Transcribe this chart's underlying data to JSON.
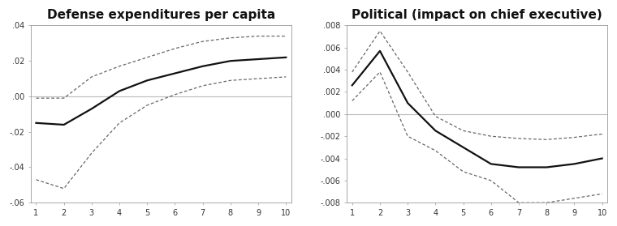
{
  "title1": "Defense expenditures per capita",
  "title2": "Political (impact on chief executive)",
  "x": [
    1,
    2,
    3,
    4,
    5,
    6,
    7,
    8,
    9,
    10
  ],
  "left_main": [
    -0.015,
    -0.016,
    -0.007,
    0.003,
    0.009,
    0.013,
    0.017,
    0.02,
    0.021,
    0.022
  ],
  "left_upper": [
    -0.001,
    -0.001,
    0.011,
    0.017,
    0.022,
    0.027,
    0.031,
    0.033,
    0.034,
    0.034
  ],
  "left_lower": [
    -0.047,
    -0.052,
    -0.032,
    -0.015,
    -0.005,
    0.001,
    0.006,
    0.009,
    0.01,
    0.011
  ],
  "right_main": [
    0.0026,
    0.0057,
    0.001,
    -0.0015,
    -0.003,
    -0.0045,
    -0.0048,
    -0.0048,
    -0.0045,
    -0.004
  ],
  "right_upper": [
    0.0038,
    0.0075,
    0.0038,
    -0.0002,
    -0.0015,
    -0.002,
    -0.0022,
    -0.0023,
    -0.0021,
    -0.0018
  ],
  "right_lower": [
    0.0012,
    0.0038,
    -0.002,
    -0.0033,
    -0.0052,
    -0.006,
    -0.008,
    -0.008,
    -0.0076,
    -0.0072
  ],
  "left_ylim": [
    -0.06,
    0.04
  ],
  "right_ylim": [
    -0.008,
    0.008
  ],
  "left_yticks": [
    0.04,
    0.02,
    0.0,
    -0.02,
    -0.04,
    -0.06
  ],
  "right_yticks": [
    0.008,
    0.006,
    0.004,
    0.002,
    0.0,
    -0.002,
    -0.004,
    -0.006,
    -0.008
  ],
  "xlim": [
    1,
    10
  ],
  "xticks": [
    1,
    2,
    3,
    4,
    5,
    6,
    7,
    8,
    9,
    10
  ],
  "line_color": "#111111",
  "dash_color": "#666666",
  "zero_line_color": "#bbbbbb",
  "plot_bg": "#ffffff",
  "fig_bg": "#ffffff",
  "border_color": "#999999",
  "title_fontsize": 11,
  "tick_fontsize": 7
}
